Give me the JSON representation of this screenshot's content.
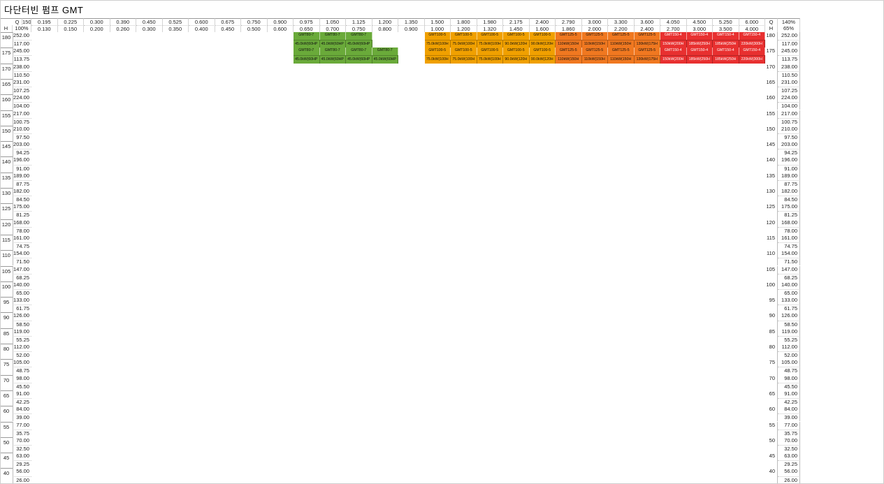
{
  "title": "다단터빈 펌프 GMT",
  "header": {
    "q_label": "Q",
    "h_label": "H",
    "q_pct": [
      "150%",
      "100%"
    ],
    "h_pct": [
      "140%",
      "65%"
    ],
    "q_top": [
      "0.195",
      "0.225",
      "0.300",
      "0.390",
      "0.450",
      "0.525",
      "0.600",
      "0.675",
      "0.750",
      "0.900",
      "0.975",
      "1.050",
      "1.125",
      "1.200",
      "1.350",
      "1.500",
      "1.800",
      "1.980",
      "2.175",
      "2.400",
      "2.790",
      "3.000",
      "3.300",
      "3.600",
      "4.050",
      "4.500",
      "5.250",
      "6.000"
    ],
    "q_bot": [
      "0.130",
      "0.150",
      "0.200",
      "0.260",
      "0.300",
      "0.350",
      "0.400",
      "0.450",
      "0.500",
      "0.600",
      "0.650",
      "0.700",
      "0.750",
      "0.800",
      "0.900",
      "1.000",
      "1.200",
      "1.320",
      "1.450",
      "1.600",
      "1.860",
      "2.000",
      "2.200",
      "2.400",
      "2.700",
      "3.000",
      "3.500",
      "4.000"
    ]
  },
  "rows": [
    {
      "h": "180",
      "top": "252.00",
      "bot": "117.00"
    },
    {
      "h": "175",
      "top": "245.00",
      "bot": "113.75"
    },
    {
      "h": "170",
      "top": "238.00",
      "bot": "110.50"
    },
    {
      "h": "165",
      "top": "231.00",
      "bot": "107.25"
    },
    {
      "h": "160",
      "top": "224.00",
      "bot": "104.00"
    },
    {
      "h": "155",
      "top": "217.00",
      "bot": "100.75"
    },
    {
      "h": "150",
      "top": "210.00",
      "bot": "97.50"
    },
    {
      "h": "145",
      "top": "203.00",
      "bot": "94.25"
    },
    {
      "h": "140",
      "top": "196.00",
      "bot": "91.00"
    },
    {
      "h": "135",
      "top": "189.00",
      "bot": "87.75"
    },
    {
      "h": "130",
      "top": "182.00",
      "bot": "84.50"
    },
    {
      "h": "125",
      "top": "175.00",
      "bot": "81.25"
    },
    {
      "h": "120",
      "top": "168.00",
      "bot": "78.00"
    },
    {
      "h": "115",
      "top": "161.00",
      "bot": "74.75"
    },
    {
      "h": "110",
      "top": "154.00",
      "bot": "71.50"
    },
    {
      "h": "105",
      "top": "147.00",
      "bot": "68.25"
    },
    {
      "h": "100",
      "top": "140.00",
      "bot": "65.00"
    },
    {
      "h": "95",
      "top": "133.00",
      "bot": "61.75"
    },
    {
      "h": "90",
      "top": "126.00",
      "bot": "58.50"
    },
    {
      "h": "85",
      "top": "119.00",
      "bot": "55.25"
    },
    {
      "h": "80",
      "top": "112.00",
      "bot": "52.00"
    },
    {
      "h": "75",
      "top": "105.00",
      "bot": "48.75"
    },
    {
      "h": "70",
      "top": "98.00",
      "bot": "45.50"
    },
    {
      "h": "65",
      "top": "91.00",
      "bot": "42.25"
    },
    {
      "h": "60",
      "top": "84.00",
      "bot": "39.00"
    },
    {
      "h": "55",
      "top": "77.00",
      "bot": "35.75"
    },
    {
      "h": "50",
      "top": "70.00",
      "bot": "32.50"
    },
    {
      "h": "45",
      "top": "63.00",
      "bot": "29.25"
    },
    {
      "h": "40",
      "top": "56.00",
      "bot": "26.00"
    }
  ],
  "colors": {
    "GMT40": "#9b59b6",
    "GMT50": "#2f6fb0",
    "GMT65": "#3a8fd9",
    "GMT80": "#6aaa3a",
    "GMT100": "#f0a000",
    "GMT125": "#f07820",
    "GMT150": "#e83030"
  },
  "cells": [
    {
      "r": 0,
      "c": 10,
      "m": "GMT80-7",
      "p": "45.0kW(60HP"
    },
    {
      "r": 0,
      "c": 11,
      "m": "GMT80-7",
      "p": "45.0kW(60HP"
    },
    {
      "r": 0,
      "c": 12,
      "m": "GMT80-7",
      "p": "45.0kW(60HP"
    },
    {
      "r": 0,
      "c": 15,
      "m": "GMT100-5",
      "p": "75.0kW(100H"
    },
    {
      "r": 0,
      "c": 16,
      "m": "GMT100-5",
      "p": "75.0kW(100H"
    },
    {
      "r": 0,
      "c": 17,
      "m": "GMT100-5",
      "p": "75.0kW(100H"
    },
    {
      "r": 0,
      "c": 18,
      "m": "GMT100-5",
      "p": "90.0kW(120H"
    },
    {
      "r": 0,
      "c": 19,
      "m": "GMT100-5",
      "p": "90.0kW(120H"
    },
    {
      "r": 0,
      "c": 20,
      "m": "GMT125-5",
      "p": "110kW(150H"
    },
    {
      "r": 0,
      "c": 21,
      "m": "GMT125-5",
      "p": "110kW(150H"
    },
    {
      "r": 0,
      "c": 22,
      "m": "GMT125-5",
      "p": "110kW(150H"
    },
    {
      "r": 0,
      "c": 23,
      "m": "GMT125-5",
      "p": "130kW(175H"
    },
    {
      "r": 0,
      "c": 24,
      "m": "GMT150-4",
      "p": "150kW(200H"
    },
    {
      "r": 0,
      "c": 25,
      "m": "GMT150-4",
      "p": "185kW(250H"
    },
    {
      "r": 0,
      "c": 26,
      "m": "GMT150-4",
      "p": "185kW(250H"
    },
    {
      "r": 0,
      "c": 27,
      "m": "GMT150-4",
      "p": "220kW(300H"
    },
    {
      "r": 1,
      "c": 10,
      "m": "GMT80-7",
      "p": "45.0kW(60HP"
    },
    {
      "r": 1,
      "c": 11,
      "m": "GMT80-7",
      "p": "45.0kW(60HP"
    },
    {
      "r": 1,
      "c": 12,
      "m": "GMT80-7",
      "p": "45.0kW(60HP"
    },
    {
      "r": 1,
      "c": 13,
      "m": "GMT80-7",
      "p": "45.0kW(60HP"
    },
    {
      "r": 1,
      "c": 15,
      "m": "GMT100-5",
      "p": "75.0kW(100H"
    },
    {
      "r": 1,
      "c": 16,
      "m": "GMT100-5",
      "p": "75.0kW(100H"
    },
    {
      "r": 1,
      "c": 17,
      "m": "GMT100-5",
      "p": "75.0kW(100H"
    },
    {
      "r": 1,
      "c": 18,
      "m": "GMT100-5",
      "p": "90.0kW(120H"
    },
    {
      "r": 1,
      "c": 19,
      "m": "GMT100-5",
      "p": "90.0kW(120H"
    },
    {
      "r": 1,
      "c": 20,
      "m": "GMT125-5",
      "p": "110kW(150H"
    },
    {
      "r": 1,
      "c": 21,
      "m": "GMT125-5",
      "p": "110kW(150H"
    },
    {
      "r": 1,
      "c": 22,
      "m": "GMT125-5",
      "p": "110kW(150H"
    },
    {
      "r": 1,
      "c": 23,
      "m": "GMT125-5",
      "p": "130kW(175H"
    },
    {
      "r": 1,
      "c": 24,
      "m": "GMT150-4",
      "p": "150kW(200H"
    },
    {
      "r": 1,
      "c": 25,
      "m": "GMT150-4",
      "p": "185kW(250H"
    },
    {
      "r": 1,
      "c": 26,
      "m": "GMT150-4",
      "p": "185kW(250H"
    },
    {
      "r": 1,
      "c": 27,
      "m": "GMT150-4",
      "p": "220kW(300H"
    }
  ]
}
